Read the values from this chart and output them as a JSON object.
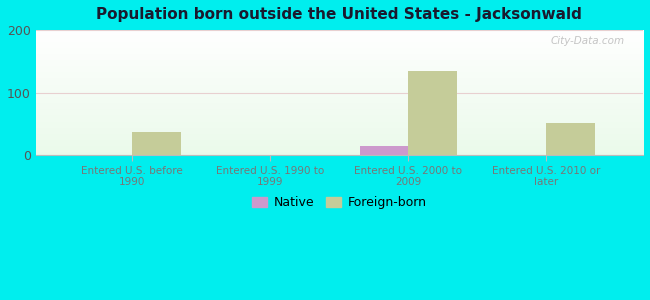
{
  "title": "Population born outside the United States - Jacksonwald",
  "categories": [
    "Entered U.S. before\n1990",
    "Entered U.S. 1990 to\n1999",
    "Entered U.S. 2000 to\n2009",
    "Entered U.S. 2010 or\nlater"
  ],
  "native_values": [
    0,
    0,
    15,
    0
  ],
  "foreign_values": [
    37,
    0,
    135,
    52
  ],
  "native_color": "#cc99cc",
  "foreign_color": "#c5cc99",
  "background_color": "#00eeee",
  "ylim": [
    0,
    200
  ],
  "yticks": [
    0,
    100,
    200
  ],
  "bar_width": 0.35,
  "watermark": "City-Data.com",
  "legend_native": "Native",
  "legend_foreign": "Foreign-born",
  "title_color": "#1a1a2e",
  "tick_label_color": "#555555",
  "xtick_label_color": "#777777"
}
